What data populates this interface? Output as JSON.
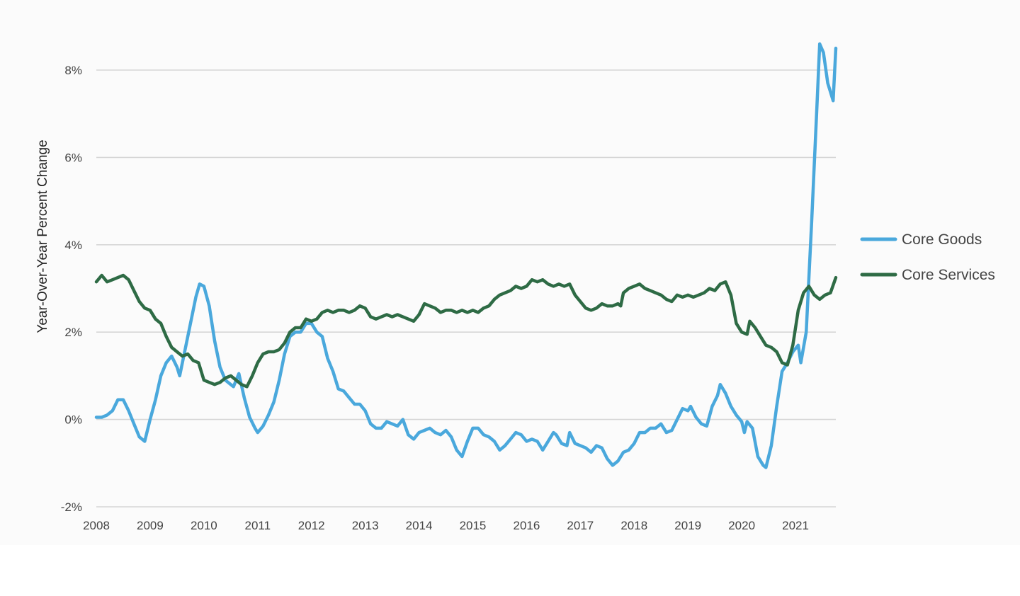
{
  "chart_data": {
    "type": "line",
    "title": "",
    "xlabel": "",
    "ylabel": "Year-Over-Year Percent Change",
    "xlim": [
      2008.0,
      2021.75
    ],
    "ylim": [
      -2,
      9
    ],
    "x_ticks": [
      2008,
      2009,
      2010,
      2011,
      2012,
      2013,
      2014,
      2015,
      2016,
      2017,
      2018,
      2019,
      2020,
      2021
    ],
    "x_tick_labels": [
      "2008",
      "2009",
      "2010",
      "2011",
      "2012",
      "2013",
      "2014",
      "2015",
      "2016",
      "2017",
      "2018",
      "2019",
      "2020",
      "2021"
    ],
    "y_ticks": [
      -2,
      0,
      2,
      4,
      6,
      8
    ],
    "y_tick_labels": [
      "-2%",
      "0%",
      "2%",
      "4%",
      "6%",
      "8%"
    ],
    "grid": "horizontal",
    "legend_position": "right",
    "series": [
      {
        "name": "Core Goods",
        "color": "#4aa8dc",
        "points": [
          [
            2008.0,
            0.05
          ],
          [
            2008.1,
            0.05
          ],
          [
            2008.2,
            0.1
          ],
          [
            2008.3,
            0.2
          ],
          [
            2008.4,
            0.45
          ],
          [
            2008.5,
            0.45
          ],
          [
            2008.6,
            0.2
          ],
          [
            2008.7,
            -0.1
          ],
          [
            2008.8,
            -0.4
          ],
          [
            2008.9,
            -0.5
          ],
          [
            2009.0,
            0.0
          ],
          [
            2009.1,
            0.45
          ],
          [
            2009.2,
            1.0
          ],
          [
            2009.3,
            1.3
          ],
          [
            2009.4,
            1.45
          ],
          [
            2009.5,
            1.2
          ],
          [
            2009.55,
            1.0
          ],
          [
            2009.65,
            1.6
          ],
          [
            2009.75,
            2.2
          ],
          [
            2009.85,
            2.8
          ],
          [
            2009.92,
            3.1
          ],
          [
            2010.0,
            3.05
          ],
          [
            2010.1,
            2.6
          ],
          [
            2010.2,
            1.8
          ],
          [
            2010.3,
            1.2
          ],
          [
            2010.4,
            0.9
          ],
          [
            2010.5,
            0.8
          ],
          [
            2010.55,
            0.75
          ],
          [
            2010.65,
            1.05
          ],
          [
            2010.75,
            0.5
          ],
          [
            2010.85,
            0.05
          ],
          [
            2010.95,
            -0.2
          ],
          [
            2011.0,
            -0.3
          ],
          [
            2011.1,
            -0.15
          ],
          [
            2011.2,
            0.1
          ],
          [
            2011.3,
            0.4
          ],
          [
            2011.4,
            0.9
          ],
          [
            2011.5,
            1.5
          ],
          [
            2011.6,
            1.9
          ],
          [
            2011.7,
            2.0
          ],
          [
            2011.8,
            2.0
          ],
          [
            2011.9,
            2.2
          ],
          [
            2012.0,
            2.2
          ],
          [
            2012.1,
            2.0
          ],
          [
            2012.2,
            1.9
          ],
          [
            2012.3,
            1.4
          ],
          [
            2012.4,
            1.1
          ],
          [
            2012.5,
            0.7
          ],
          [
            2012.6,
            0.65
          ],
          [
            2012.7,
            0.5
          ],
          [
            2012.8,
            0.35
          ],
          [
            2012.9,
            0.35
          ],
          [
            2013.0,
            0.2
          ],
          [
            2013.1,
            -0.1
          ],
          [
            2013.2,
            -0.2
          ],
          [
            2013.3,
            -0.2
          ],
          [
            2013.4,
            -0.05
          ],
          [
            2013.5,
            -0.1
          ],
          [
            2013.6,
            -0.15
          ],
          [
            2013.7,
            0.0
          ],
          [
            2013.8,
            -0.35
          ],
          [
            2013.9,
            -0.45
          ],
          [
            2014.0,
            -0.3
          ],
          [
            2014.1,
            -0.25
          ],
          [
            2014.2,
            -0.2
          ],
          [
            2014.3,
            -0.3
          ],
          [
            2014.4,
            -0.35
          ],
          [
            2014.5,
            -0.25
          ],
          [
            2014.6,
            -0.4
          ],
          [
            2014.7,
            -0.7
          ],
          [
            2014.8,
            -0.85
          ],
          [
            2014.9,
            -0.5
          ],
          [
            2015.0,
            -0.2
          ],
          [
            2015.1,
            -0.2
          ],
          [
            2015.2,
            -0.35
          ],
          [
            2015.3,
            -0.4
          ],
          [
            2015.4,
            -0.5
          ],
          [
            2015.5,
            -0.7
          ],
          [
            2015.6,
            -0.6
          ],
          [
            2015.7,
            -0.45
          ],
          [
            2015.8,
            -0.3
          ],
          [
            2015.9,
            -0.35
          ],
          [
            2016.0,
            -0.5
          ],
          [
            2016.1,
            -0.45
          ],
          [
            2016.2,
            -0.5
          ],
          [
            2016.3,
            -0.7
          ],
          [
            2016.4,
            -0.5
          ],
          [
            2016.5,
            -0.3
          ],
          [
            2016.55,
            -0.35
          ],
          [
            2016.65,
            -0.55
          ],
          [
            2016.75,
            -0.6
          ],
          [
            2016.8,
            -0.3
          ],
          [
            2016.9,
            -0.55
          ],
          [
            2017.0,
            -0.6
          ],
          [
            2017.1,
            -0.65
          ],
          [
            2017.2,
            -0.75
          ],
          [
            2017.3,
            -0.6
          ],
          [
            2017.4,
            -0.65
          ],
          [
            2017.5,
            -0.9
          ],
          [
            2017.6,
            -1.05
          ],
          [
            2017.7,
            -0.95
          ],
          [
            2017.8,
            -0.75
          ],
          [
            2017.9,
            -0.7
          ],
          [
            2018.0,
            -0.55
          ],
          [
            2018.1,
            -0.3
          ],
          [
            2018.2,
            -0.3
          ],
          [
            2018.3,
            -0.2
          ],
          [
            2018.4,
            -0.2
          ],
          [
            2018.5,
            -0.1
          ],
          [
            2018.6,
            -0.3
          ],
          [
            2018.7,
            -0.25
          ],
          [
            2018.8,
            0.0
          ],
          [
            2018.9,
            0.25
          ],
          [
            2019.0,
            0.2
          ],
          [
            2019.05,
            0.3
          ],
          [
            2019.15,
            0.05
          ],
          [
            2019.25,
            -0.1
          ],
          [
            2019.35,
            -0.15
          ],
          [
            2019.45,
            0.3
          ],
          [
            2019.55,
            0.55
          ],
          [
            2019.6,
            0.8
          ],
          [
            2019.7,
            0.6
          ],
          [
            2019.8,
            0.3
          ],
          [
            2019.9,
            0.1
          ],
          [
            2020.0,
            -0.05
          ],
          [
            2020.05,
            -0.3
          ],
          [
            2020.1,
            -0.05
          ],
          [
            2020.2,
            -0.2
          ],
          [
            2020.3,
            -0.85
          ],
          [
            2020.4,
            -1.05
          ],
          [
            2020.45,
            -1.1
          ],
          [
            2020.55,
            -0.6
          ],
          [
            2020.65,
            0.3
          ],
          [
            2020.75,
            1.1
          ],
          [
            2020.85,
            1.3
          ],
          [
            2020.95,
            1.55
          ],
          [
            2021.05,
            1.7
          ],
          [
            2021.1,
            1.3
          ],
          [
            2021.2,
            2.0
          ],
          [
            2021.3,
            4.5
          ],
          [
            2021.4,
            7.2
          ],
          [
            2021.45,
            8.6
          ],
          [
            2021.52,
            8.4
          ],
          [
            2021.6,
            7.7
          ],
          [
            2021.7,
            7.3
          ],
          [
            2021.75,
            8.5
          ]
        ]
      },
      {
        "name": "Core Services",
        "color": "#2e6b45",
        "points": [
          [
            2008.0,
            3.15
          ],
          [
            2008.1,
            3.3
          ],
          [
            2008.2,
            3.15
          ],
          [
            2008.3,
            3.2
          ],
          [
            2008.4,
            3.25
          ],
          [
            2008.5,
            3.3
          ],
          [
            2008.6,
            3.2
          ],
          [
            2008.7,
            2.95
          ],
          [
            2008.8,
            2.7
          ],
          [
            2008.9,
            2.55
          ],
          [
            2009.0,
            2.5
          ],
          [
            2009.1,
            2.3
          ],
          [
            2009.2,
            2.2
          ],
          [
            2009.3,
            1.9
          ],
          [
            2009.4,
            1.65
          ],
          [
            2009.5,
            1.55
          ],
          [
            2009.6,
            1.45
          ],
          [
            2009.7,
            1.5
          ],
          [
            2009.8,
            1.35
          ],
          [
            2009.9,
            1.3
          ],
          [
            2010.0,
            0.9
          ],
          [
            2010.1,
            0.85
          ],
          [
            2010.2,
            0.8
          ],
          [
            2010.3,
            0.85
          ],
          [
            2010.4,
            0.95
          ],
          [
            2010.5,
            1.0
          ],
          [
            2010.6,
            0.9
          ],
          [
            2010.7,
            0.8
          ],
          [
            2010.8,
            0.75
          ],
          [
            2010.9,
            1.0
          ],
          [
            2011.0,
            1.3
          ],
          [
            2011.1,
            1.5
          ],
          [
            2011.2,
            1.55
          ],
          [
            2011.3,
            1.55
          ],
          [
            2011.4,
            1.6
          ],
          [
            2011.5,
            1.75
          ],
          [
            2011.6,
            2.0
          ],
          [
            2011.7,
            2.1
          ],
          [
            2011.8,
            2.1
          ],
          [
            2011.9,
            2.3
          ],
          [
            2012.0,
            2.25
          ],
          [
            2012.1,
            2.3
          ],
          [
            2012.2,
            2.45
          ],
          [
            2012.3,
            2.5
          ],
          [
            2012.4,
            2.45
          ],
          [
            2012.5,
            2.5
          ],
          [
            2012.6,
            2.5
          ],
          [
            2012.7,
            2.45
          ],
          [
            2012.8,
            2.5
          ],
          [
            2012.9,
            2.6
          ],
          [
            2013.0,
            2.55
          ],
          [
            2013.1,
            2.35
          ],
          [
            2013.2,
            2.3
          ],
          [
            2013.3,
            2.35
          ],
          [
            2013.4,
            2.4
          ],
          [
            2013.5,
            2.35
          ],
          [
            2013.6,
            2.4
          ],
          [
            2013.7,
            2.35
          ],
          [
            2013.8,
            2.3
          ],
          [
            2013.9,
            2.25
          ],
          [
            2014.0,
            2.4
          ],
          [
            2014.1,
            2.65
          ],
          [
            2014.2,
            2.6
          ],
          [
            2014.3,
            2.55
          ],
          [
            2014.4,
            2.45
          ],
          [
            2014.5,
            2.5
          ],
          [
            2014.6,
            2.5
          ],
          [
            2014.7,
            2.45
          ],
          [
            2014.8,
            2.5
          ],
          [
            2014.9,
            2.45
          ],
          [
            2015.0,
            2.5
          ],
          [
            2015.1,
            2.45
          ],
          [
            2015.2,
            2.55
          ],
          [
            2015.3,
            2.6
          ],
          [
            2015.4,
            2.75
          ],
          [
            2015.5,
            2.85
          ],
          [
            2015.6,
            2.9
          ],
          [
            2015.7,
            2.95
          ],
          [
            2015.8,
            3.05
          ],
          [
            2015.9,
            3.0
          ],
          [
            2016.0,
            3.05
          ],
          [
            2016.1,
            3.2
          ],
          [
            2016.2,
            3.15
          ],
          [
            2016.3,
            3.2
          ],
          [
            2016.4,
            3.1
          ],
          [
            2016.5,
            3.05
          ],
          [
            2016.6,
            3.1
          ],
          [
            2016.7,
            3.05
          ],
          [
            2016.8,
            3.1
          ],
          [
            2016.9,
            2.85
          ],
          [
            2017.0,
            2.7
          ],
          [
            2017.1,
            2.55
          ],
          [
            2017.2,
            2.5
          ],
          [
            2017.3,
            2.55
          ],
          [
            2017.4,
            2.65
          ],
          [
            2017.5,
            2.6
          ],
          [
            2017.6,
            2.6
          ],
          [
            2017.7,
            2.65
          ],
          [
            2017.75,
            2.6
          ],
          [
            2017.8,
            2.9
          ],
          [
            2017.9,
            3.0
          ],
          [
            2018.0,
            3.05
          ],
          [
            2018.1,
            3.1
          ],
          [
            2018.2,
            3.0
          ],
          [
            2018.3,
            2.95
          ],
          [
            2018.4,
            2.9
          ],
          [
            2018.5,
            2.85
          ],
          [
            2018.6,
            2.75
          ],
          [
            2018.7,
            2.7
          ],
          [
            2018.8,
            2.85
          ],
          [
            2018.9,
            2.8
          ],
          [
            2019.0,
            2.85
          ],
          [
            2019.1,
            2.8
          ],
          [
            2019.2,
            2.85
          ],
          [
            2019.3,
            2.9
          ],
          [
            2019.4,
            3.0
          ],
          [
            2019.5,
            2.95
          ],
          [
            2019.6,
            3.1
          ],
          [
            2019.7,
            3.15
          ],
          [
            2019.8,
            2.85
          ],
          [
            2019.9,
            2.2
          ],
          [
            2020.0,
            2.0
          ],
          [
            2020.1,
            1.95
          ],
          [
            2020.15,
            2.25
          ],
          [
            2020.25,
            2.1
          ],
          [
            2020.35,
            1.9
          ],
          [
            2020.45,
            1.7
          ],
          [
            2020.55,
            1.65
          ],
          [
            2020.65,
            1.55
          ],
          [
            2020.75,
            1.3
          ],
          [
            2020.85,
            1.25
          ],
          [
            2020.95,
            1.7
          ],
          [
            2021.05,
            2.5
          ],
          [
            2021.15,
            2.9
          ],
          [
            2021.25,
            3.05
          ],
          [
            2021.35,
            2.85
          ],
          [
            2021.45,
            2.75
          ],
          [
            2021.55,
            2.85
          ],
          [
            2021.65,
            2.9
          ],
          [
            2021.75,
            3.25
          ]
        ]
      }
    ]
  }
}
